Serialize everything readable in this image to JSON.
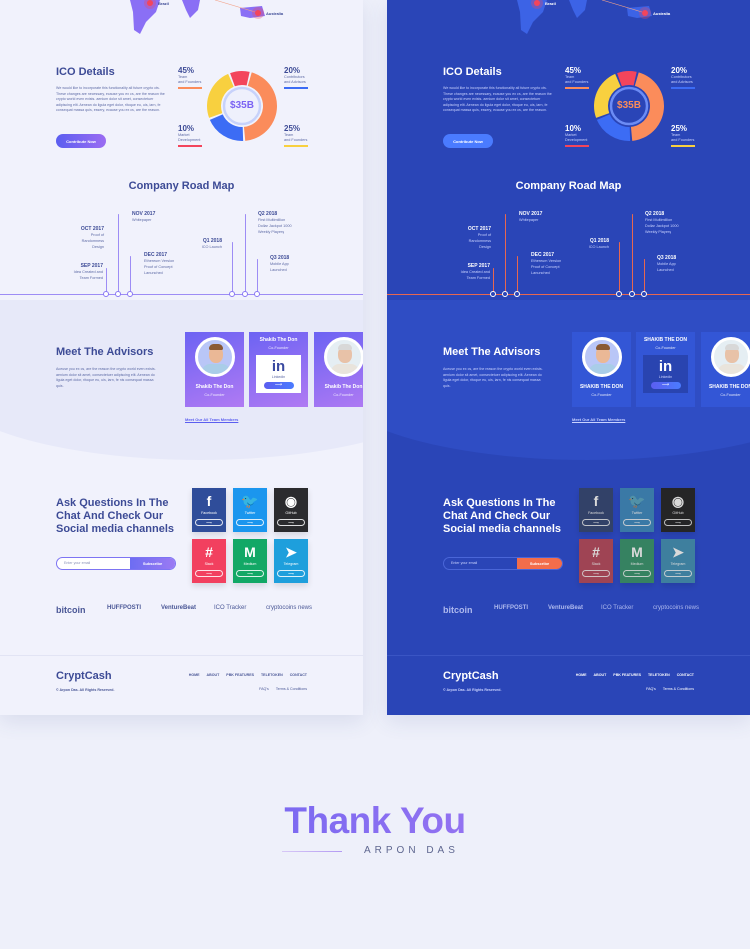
{
  "map": {
    "markers": [
      "Brazil",
      "Australia"
    ]
  },
  "ico": {
    "title": "ICO Details",
    "description": "We would like to incorporate this functionality all future crypto cts. These changes are necessary, ecause you ex cs, are the reason the crypto world even exists. aenium dolor sit amet, consectetuer adipiscing elit. Aenean do ligula eget dolor, ritoque eu, uis, iarn, fe consequat massa quis, essery, ecause you ex cs, are the reason.",
    "button": "Contribute Now",
    "total": "$35B",
    "segments": [
      {
        "pct": "45%",
        "label1": "Team",
        "label2": "and Founders",
        "value": 45,
        "color": "#fb8c5b"
      },
      {
        "pct": "20%",
        "label1": "Contributors",
        "label2": "and Advisors",
        "value": 20,
        "color": "#3c6cf5"
      },
      {
        "pct": "25%",
        "label1": "Team",
        "label2": "and Founders",
        "value": 25,
        "color": "#f8d03f"
      },
      {
        "pct": "10%",
        "label1": "Market",
        "label2": "Development",
        "value": 10,
        "color": "#f3455c"
      }
    ]
  },
  "roadmap": {
    "title": "Company Road Map",
    "milestones": [
      {
        "date": "SEP 2017",
        "lines": [
          "Idea Created and",
          "Team Formed"
        ]
      },
      {
        "date": "OCT 2017",
        "lines": [
          "Proof of",
          "Randomness",
          "Design"
        ]
      },
      {
        "date": "NOV 2017",
        "lines": [
          "Whitepaper"
        ]
      },
      {
        "date": "DEC 2017",
        "lines": [
          "Ethereum Version",
          "Proof of Concept",
          "Lanunched"
        ]
      },
      {
        "date": "Q1 2018",
        "lines": [
          "ICO Launch"
        ]
      },
      {
        "date": "Q2 2018",
        "lines": [
          "First Multimillion",
          "Dollar Jackpot 1000",
          "Weekly Playerş"
        ]
      },
      {
        "date": "Q3 2018",
        "lines": [
          "Mobile App",
          "Launched"
        ]
      }
    ]
  },
  "advisors": {
    "title": "Meet The Advisors",
    "description": "Aceuse you ex cs, are the reason the crypto world even exists. aenium dolor sit amet, consectetuer adipiscing elit. Aenean do ligula eget dolor, ritoque eu, uis, iarn, fe nis consequat massa quis.",
    "light_name": "Shakib The Don",
    "dark_name": "SHAKIB THE DON",
    "role": "Co-Founder",
    "linkedin": "Linkedin",
    "link": "Meet Our All Team Members"
  },
  "contact": {
    "title": "Ask Questions In The Chat And Check Our Social media channels",
    "email_placeholder": "Enter your email",
    "subscribe": "Subscribe",
    "socials": [
      {
        "label": "Facebook",
        "icon": "f",
        "color": "#2f4d9a"
      },
      {
        "label": "Twitter",
        "icon": "🐦",
        "color": "#1b96ee"
      },
      {
        "label": "GitHub",
        "icon": "◉",
        "color": "#2b2b2e"
      },
      {
        "label": "Slack",
        "icon": "#",
        "color": "#f2405f"
      },
      {
        "label": "Medium",
        "icon": "M",
        "color": "#12a866"
      },
      {
        "label": "Telegram",
        "icon": "➤",
        "color": "#1e9fdc"
      }
    ],
    "arrow": "⟶"
  },
  "press": [
    "bitcoin",
    "HUFFPOSTI",
    "VentureBeat",
    "ICO Tracker",
    "cryptocoins news"
  ],
  "footer": {
    "brand": "CryptCash",
    "copyright": "© Arpon Das. All Rights Reserved.",
    "nav": [
      "HOME",
      "ABOUT",
      "PBK FEATURES",
      "TELETOKEN",
      "CONTACT"
    ],
    "links": [
      "FAQ's",
      "Terms & Conditions"
    ]
  },
  "thanks": {
    "title": "Thank You",
    "author": "ARPON DAS"
  },
  "colors": {
    "light_bg": "#f1f2fc",
    "dark_bg": "#2a45b7",
    "accent": "#5b5ef0",
    "dark_subscribe": "#f36d4b"
  }
}
